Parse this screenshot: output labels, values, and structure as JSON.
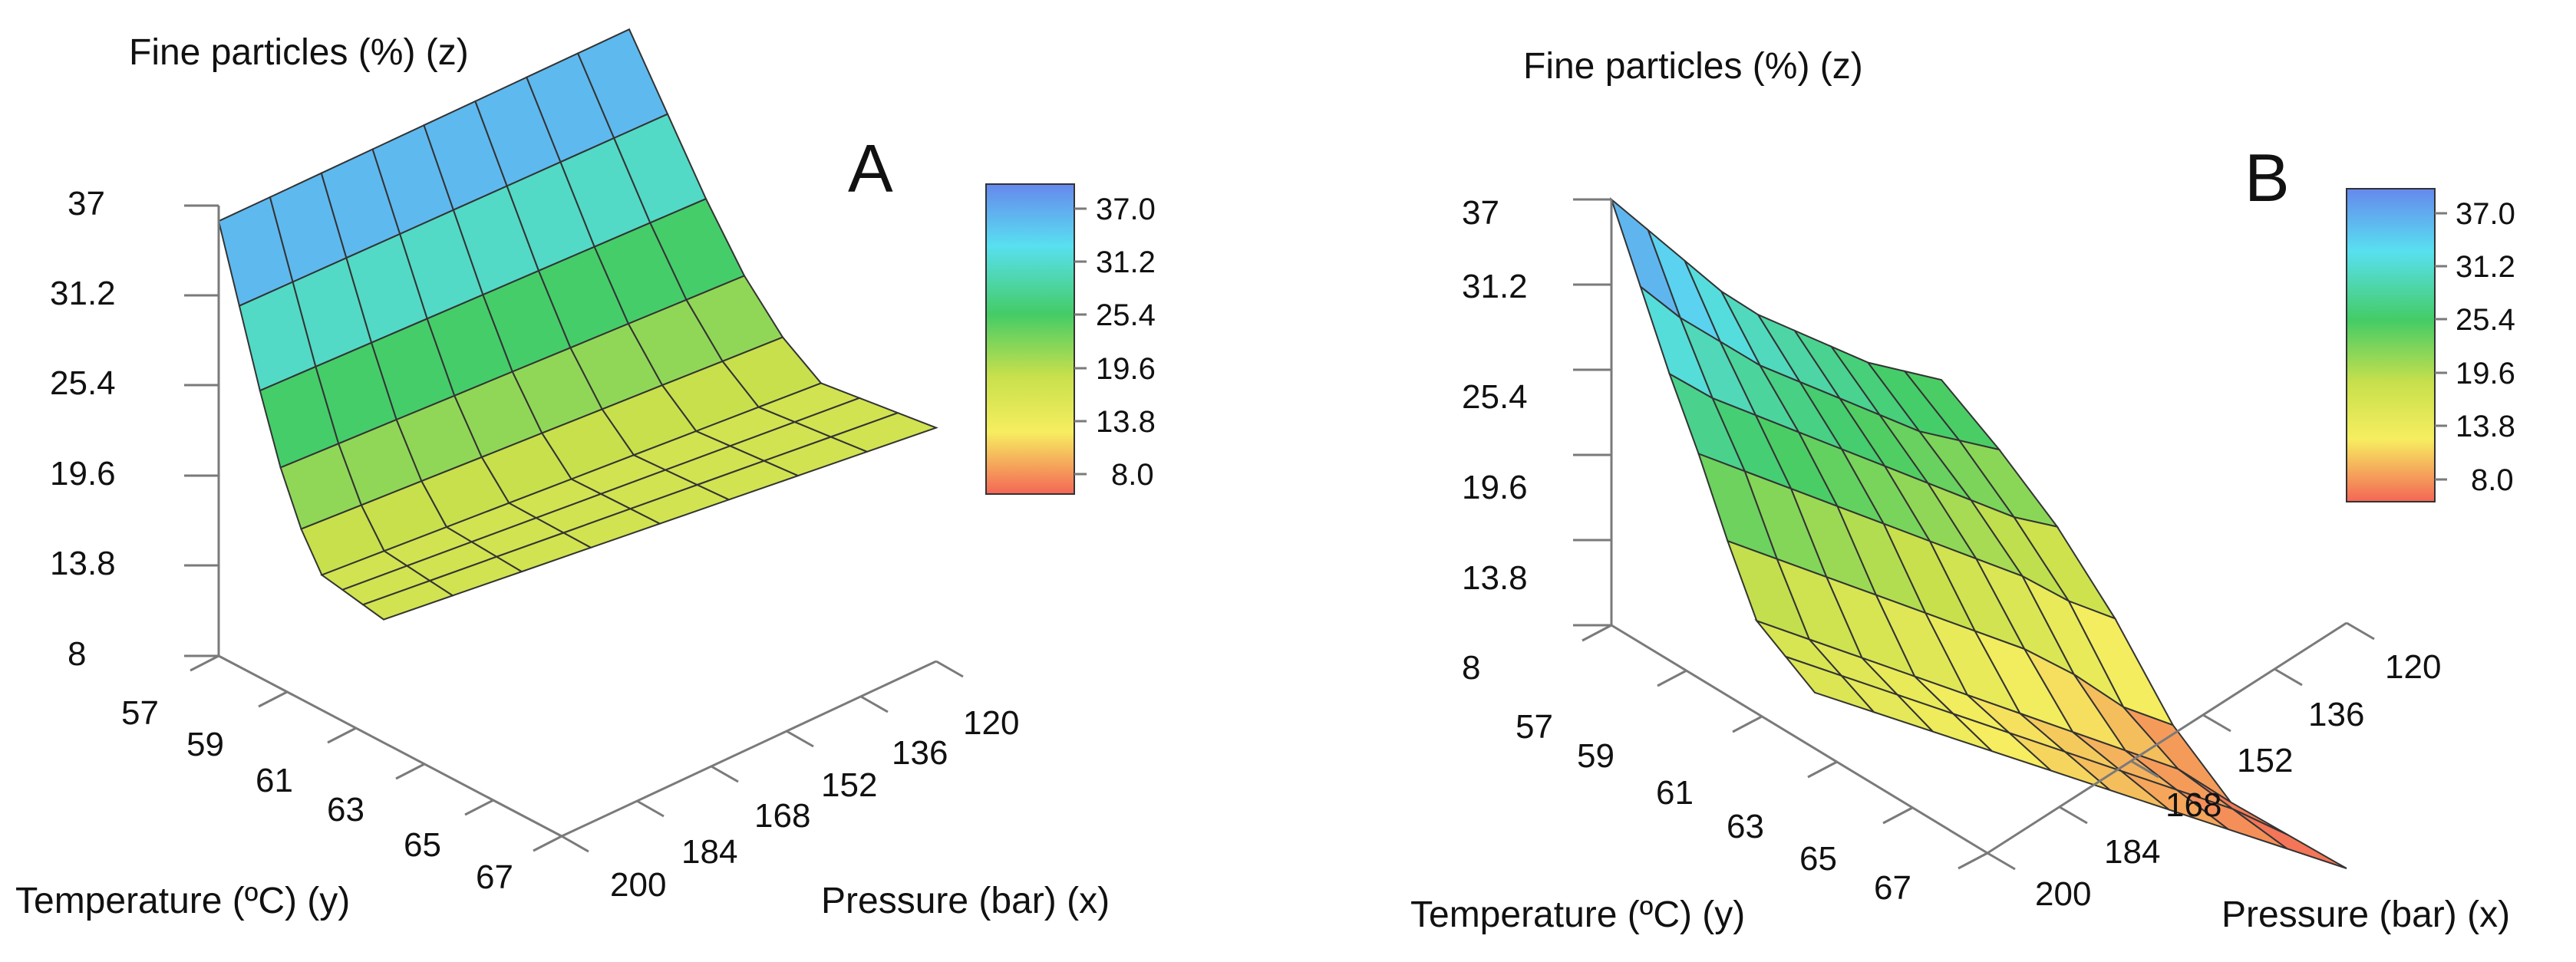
{
  "chart_data": [
    {
      "type": "surface3d",
      "panel_label": "A",
      "zlabel": "Fine particles (%) (z)",
      "ylabel": "Temperature (ºC) (y)",
      "xlabel": "Pressure (bar) (x)",
      "z_ticks": [
        "37",
        "31.2",
        "25.4",
        "19.6",
        "13.8",
        "8"
      ],
      "y_ticks": [
        "57",
        "59",
        "61",
        "63",
        "65",
        "67"
      ],
      "x_ticks": [
        "200",
        "184",
        "168",
        "152",
        "136",
        "120"
      ],
      "zlim": [
        8,
        37
      ],
      "ylim": [
        57,
        67
      ],
      "xlim": [
        120,
        200
      ],
      "colorbar": {
        "labels": [
          "37.0",
          "31.2",
          "25.4",
          "19.6",
          "13.8",
          "8.0"
        ],
        "colors": [
          "#6688ee",
          "#58e0f0",
          "#44cc66",
          "#c8e04c",
          "#f6ee60",
          "#f46656"
        ]
      },
      "surface_rows": [
        [
          36,
          36,
          36,
          36,
          36,
          36,
          36,
          36,
          36
        ],
        [
          31.5,
          31.5,
          31.5,
          31.5,
          31.5,
          31.5,
          31.5,
          31.5,
          31.5
        ],
        [
          27,
          27,
          27,
          27,
          27,
          27,
          27,
          27,
          27
        ],
        [
          23,
          23,
          23,
          23,
          23,
          23,
          23,
          23,
          23
        ],
        [
          20,
          20,
          20,
          20,
          20,
          20,
          20,
          20,
          20
        ],
        [
          18,
          18,
          18,
          18,
          18,
          18,
          18,
          18,
          18
        ],
        [
          18,
          18,
          18,
          18,
          18,
          18,
          18,
          18,
          18
        ],
        [
          18,
          18,
          18,
          18,
          18,
          18,
          18,
          18,
          18
        ],
        [
          18,
          18,
          18,
          18,
          18,
          18,
          18,
          18,
          18
        ]
      ]
    },
    {
      "type": "surface3d",
      "panel_label": "B",
      "zlabel": "Fine particles (%) (z)",
      "ylabel": "Temperature (ºC) (y)",
      "xlabel": "Pressure (bar) (x)",
      "z_ticks": [
        "37",
        "31.2",
        "25.4",
        "19.6",
        "13.8",
        "8"
      ],
      "y_ticks": [
        "57",
        "59",
        "61",
        "63",
        "65",
        "67"
      ],
      "x_ticks": [
        "200",
        "184",
        "168",
        "152",
        "136",
        "120"
      ],
      "zlim": [
        8,
        37
      ],
      "ylim": [
        57,
        67
      ],
      "xlim": [
        120,
        200
      ],
      "colorbar": {
        "labels": [
          "37.0",
          "31.2",
          "25.4",
          "19.6",
          "13.8",
          "8.0"
        ],
        "colors": [
          "#6688ee",
          "#58e0f0",
          "#44cc66",
          "#c8e04c",
          "#f6ee60",
          "#f46656"
        ]
      },
      "surface_rows": [
        [
          37,
          35,
          33,
          31,
          29.5,
          28.5,
          27.5,
          26.5,
          26,
          25.5
        ],
        [
          33,
          31,
          29.5,
          28,
          27,
          26,
          25,
          24,
          23.5,
          23
        ],
        [
          29,
          27.5,
          26.5,
          25.5,
          24.5,
          23.5,
          22.5,
          21.5,
          20.5,
          20
        ],
        [
          25.5,
          24.5,
          23.5,
          22.5,
          21.5,
          20.5,
          19.5,
          18.5,
          17,
          16
        ],
        [
          21.5,
          20.5,
          19.5,
          18.5,
          17.5,
          16.5,
          15.5,
          14,
          12,
          11
        ],
        [
          18,
          17,
          16,
          15,
          14,
          13,
          12,
          11,
          10,
          8
        ],
        [
          17.5,
          16.5,
          15.5,
          14.5,
          13.5,
          12.5,
          11.5,
          10.5,
          9.5,
          8
        ],
        [
          17,
          16,
          15,
          14,
          13,
          12,
          11,
          10,
          9,
          8
        ]
      ]
    }
  ]
}
